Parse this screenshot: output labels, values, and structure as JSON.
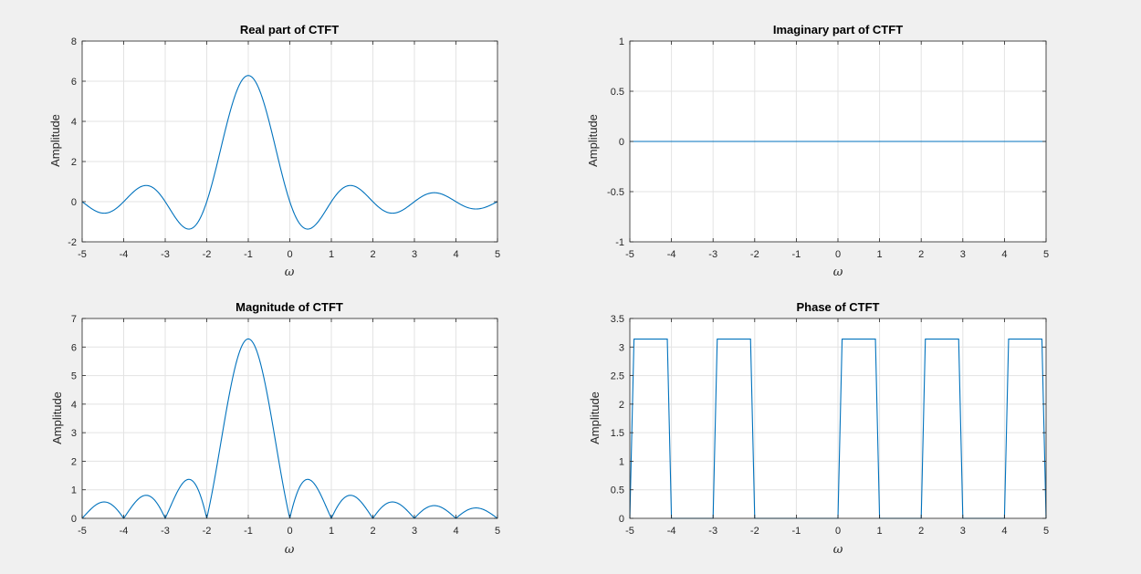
{
  "colors": {
    "line": "#0072bd",
    "grid": "#e3e3e3",
    "axis": "#262626",
    "background": "#f0f0f0"
  },
  "chart_data": [
    {
      "type": "line",
      "title": "Real part of CTFT",
      "xlabel": "ω",
      "ylabel": "Amplitude",
      "xlim": [
        -5,
        5
      ],
      "ylim": [
        -2,
        8
      ],
      "xticks": [
        -5,
        -4,
        -3,
        -2,
        -1,
        0,
        1,
        2,
        3,
        4,
        5
      ],
      "yticks": [
        -2,
        0,
        2,
        4,
        6,
        8
      ],
      "grid": true,
      "function": "real",
      "x": [
        -5,
        -4.5,
        -4,
        -3.5,
        -3,
        -2.5,
        -2,
        -1.5,
        -1,
        -0.5,
        0,
        0.5,
        1,
        1.5,
        2,
        2.5,
        3,
        3.5,
        4,
        4.5,
        5
      ],
      "values": [
        0,
        -0.56,
        0,
        0.8,
        0,
        -1.33,
        0,
        4.0,
        6.28,
        4.0,
        0,
        -1.33,
        0,
        0.8,
        0,
        -0.56,
        0,
        0.44,
        0,
        -0.33,
        0
      ]
    },
    {
      "type": "line",
      "title": "Imaginary part of CTFT",
      "xlabel": "ω",
      "ylabel": "Amplitude",
      "xlim": [
        -5,
        5
      ],
      "ylim": [
        -1,
        1
      ],
      "xticks": [
        -5,
        -4,
        -3,
        -2,
        -1,
        0,
        1,
        2,
        3,
        4,
        5
      ],
      "yticks": [
        -1,
        -0.5,
        0,
        0.5,
        1
      ],
      "grid": true,
      "function": "zero",
      "x": [
        -5,
        5
      ],
      "values": [
        0,
        0
      ]
    },
    {
      "type": "line",
      "title": "Magnitude of CTFT",
      "xlabel": "ω",
      "ylabel": "Amplitude",
      "xlim": [
        -5,
        5
      ],
      "ylim": [
        0,
        7
      ],
      "xticks": [
        -5,
        -4,
        -3,
        -2,
        -1,
        0,
        1,
        2,
        3,
        4,
        5
      ],
      "yticks": [
        0,
        1,
        2,
        3,
        4,
        5,
        6,
        7
      ],
      "grid": true,
      "function": "magnitude",
      "x": [
        -5,
        -4.5,
        -4,
        -3.5,
        -3,
        -2.5,
        -2,
        -1.5,
        -1,
        -0.5,
        0,
        0.5,
        1,
        1.5,
        2,
        2.5,
        3,
        3.5,
        4,
        4.5,
        5
      ],
      "values": [
        0,
        0.56,
        0,
        0.8,
        0,
        1.33,
        0,
        4.0,
        6.28,
        4.0,
        0,
        1.33,
        0,
        0.8,
        0,
        0.56,
        0,
        0.44,
        0,
        0.33,
        0
      ]
    },
    {
      "type": "line",
      "title": "Phase of CTFT",
      "xlabel": "ω",
      "ylabel": "Amplitude",
      "xlim": [
        -5,
        5
      ],
      "ylim": [
        0,
        3.5
      ],
      "xticks": [
        -5,
        -4,
        -3,
        -2,
        -1,
        0,
        1,
        2,
        3,
        4,
        5
      ],
      "yticks": [
        0,
        0.5,
        1,
        1.5,
        2,
        2.5,
        3,
        3.5
      ],
      "grid": true,
      "function": "phase",
      "x": [
        -5,
        -4.9,
        -4.1,
        -4,
        -3,
        -2.9,
        -2.1,
        -2,
        0,
        0.1,
        0.9,
        1,
        2,
        2.1,
        2.9,
        3,
        4,
        4.1,
        4.9,
        5
      ],
      "values": [
        0,
        3.14,
        3.14,
        0,
        0,
        3.14,
        3.14,
        0,
        0,
        3.14,
        3.14,
        0,
        0,
        3.14,
        3.14,
        0,
        0,
        3.14,
        3.14,
        0
      ]
    }
  ]
}
